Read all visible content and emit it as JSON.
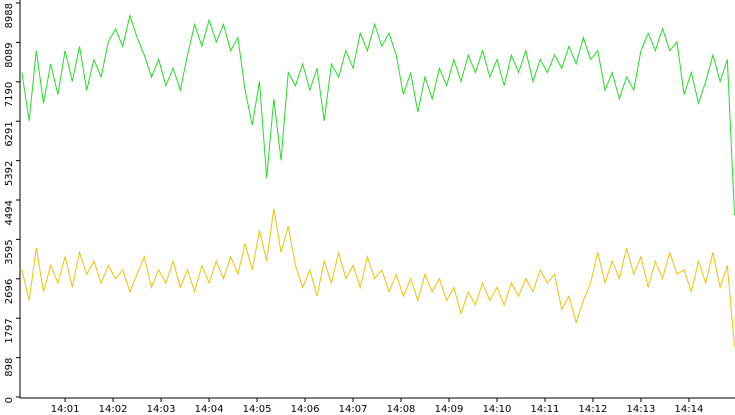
{
  "chart_data": {
    "type": "line",
    "x": [
      840.1,
      840.25,
      840.4,
      840.55,
      840.7,
      840.85,
      841,
      841.15,
      841.3,
      841.45,
      841.6,
      841.75,
      841.9,
      842.05,
      842.2,
      842.35,
      842.5,
      842.65,
      842.8,
      842.95,
      843.1,
      843.25,
      843.4,
      843.55,
      843.7,
      843.85,
      844,
      844.15,
      844.3,
      844.45,
      844.6,
      844.75,
      844.9,
      845.05,
      845.2,
      845.35,
      845.5,
      845.65,
      845.8,
      845.95,
      846.1,
      846.25,
      846.4,
      846.55,
      846.7,
      846.85,
      847,
      847.15,
      847.3,
      847.45,
      847.6,
      847.75,
      847.9,
      848.05,
      848.2,
      848.35,
      848.5,
      848.65,
      848.8,
      848.95,
      849.1,
      849.25,
      849.4,
      849.55,
      849.7,
      849.85,
      850,
      850.15,
      850.3,
      850.45,
      850.6,
      850.75,
      850.9,
      851.05,
      851.2,
      851.35,
      851.5,
      851.65,
      851.8,
      851.95,
      852.1,
      852.25,
      852.4,
      852.55,
      852.7,
      852.85,
      853,
      853.15,
      853.3,
      853.45,
      853.6,
      853.75,
      853.9,
      854.05,
      854.2,
      854.35,
      854.5,
      854.65,
      854.8,
      854.95
    ],
    "series": [
      {
        "color": "#22e022",
        "values": [
          7400,
          6300,
          7900,
          6700,
          7600,
          6900,
          7900,
          7200,
          8000,
          7000,
          7700,
          7300,
          8100,
          8400,
          8000,
          8700,
          8200,
          7800,
          7300,
          7700,
          7100,
          7500,
          7000,
          7800,
          8500,
          8000,
          8600,
          8100,
          8500,
          7900,
          8200,
          7000,
          6200,
          7200,
          5000,
          6800,
          5400,
          7400,
          7100,
          7600,
          7000,
          7500,
          6300,
          7600,
          7300,
          7900,
          7500,
          8300,
          7900,
          8500,
          8000,
          8300,
          7800,
          6900,
          7400,
          6500,
          7300,
          6800,
          7500,
          7100,
          7700,
          7200,
          7800,
          7400,
          7900,
          7300,
          7700,
          7100,
          7800,
          7400,
          7900,
          7200,
          7700,
          7400,
          7800,
          7500,
          8000,
          7600,
          8200,
          7700,
          7900,
          7000,
          7400,
          6800,
          7300,
          7000,
          7900,
          8300,
          7900,
          8400,
          7900,
          8100,
          6900,
          7400,
          6700,
          7200,
          7800,
          7200,
          7700,
          4150
        ]
      },
      {
        "color": "#f2c200",
        "values": [
          2900,
          2200,
          3400,
          2400,
          3000,
          2600,
          3200,
          2500,
          3300,
          2800,
          3100,
          2600,
          3000,
          2700,
          2900,
          2400,
          2800,
          3200,
          2500,
          2900,
          2600,
          3100,
          2500,
          2900,
          2400,
          3000,
          2600,
          3100,
          2700,
          3200,
          2800,
          3500,
          2900,
          3800,
          3100,
          4300,
          3300,
          3900,
          3000,
          2500,
          2900,
          2300,
          3100,
          2600,
          3300,
          2700,
          3000,
          2500,
          3200,
          2700,
          2900,
          2400,
          2800,
          2300,
          2700,
          2200,
          2800,
          2400,
          2700,
          2200,
          2500,
          1900,
          2400,
          2100,
          2600,
          2200,
          2500,
          2100,
          2600,
          2300,
          2700,
          2400,
          2900,
          2600,
          2800,
          2000,
          2300,
          1700,
          2200,
          2600,
          3300,
          2600,
          3100,
          2700,
          3400,
          2800,
          3200,
          2500,
          3100,
          2700,
          3300,
          2800,
          2900,
          2400,
          3100,
          2600,
          3300,
          2500,
          3000,
          1150
        ]
      }
    ],
    "xlim": [
      840.06,
      854.96
    ],
    "xticks": [
      {
        "value": 841,
        "label": "14:01"
      },
      {
        "value": 842,
        "label": "14:02"
      },
      {
        "value": 843,
        "label": "14:03"
      },
      {
        "value": 844,
        "label": "14:04"
      },
      {
        "value": 845,
        "label": "14:05"
      },
      {
        "value": 846,
        "label": "14:06"
      },
      {
        "value": 847,
        "label": "14:07"
      },
      {
        "value": 848,
        "label": "14:08"
      },
      {
        "value": 849,
        "label": "14:09"
      },
      {
        "value": 850,
        "label": "14:10"
      },
      {
        "value": 851,
        "label": "14:11"
      },
      {
        "value": 852,
        "label": "14:12"
      },
      {
        "value": 853,
        "label": "14:13"
      },
      {
        "value": 854,
        "label": "14:14"
      }
    ],
    "ylim": [
      0,
      8988
    ],
    "yticks": [
      0,
      898,
      1797,
      2696,
      3595,
      4494,
      5392,
      6291,
      7190,
      8089,
      8988
    ]
  }
}
